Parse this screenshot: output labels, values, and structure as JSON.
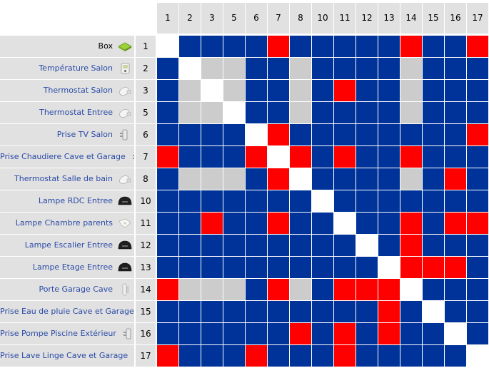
{
  "matrix": {
    "columns": [
      "1",
      "2",
      "3",
      "5",
      "6",
      "7",
      "8",
      "10",
      "11",
      "12",
      "13",
      "14",
      "15",
      "16",
      "17"
    ],
    "rows": [
      {
        "label": "Box",
        "num": "1",
        "icon": "box-icon"
      },
      {
        "label": "Température Salon",
        "num": "2",
        "icon": "thermometer-device-icon"
      },
      {
        "label": "Thermostat Salon",
        "num": "3",
        "icon": "thermostat-head-icon"
      },
      {
        "label": "Thermostat Entree",
        "num": "5",
        "icon": "thermostat-head-icon"
      },
      {
        "label": "Prise TV Salon",
        "num": "6",
        "icon": "plug-icon"
      },
      {
        "label": "Prise Chaudiere Cave et Garage",
        "num": "7",
        "icon": "plug-icon"
      },
      {
        "label": "Thermostat Salle de bain",
        "num": "8",
        "icon": "thermostat-head-icon"
      },
      {
        "label": "Lampe RDC Entree",
        "num": "10",
        "icon": "dimmer-module-icon"
      },
      {
        "label": "Lampe Chambre parents",
        "num": "11",
        "icon": "bulb-module-icon"
      },
      {
        "label": "Lampe Escalier Entree",
        "num": "12",
        "icon": "dimmer-module-icon"
      },
      {
        "label": "Lampe Etage Entree",
        "num": "13",
        "icon": "dimmer-module-icon"
      },
      {
        "label": "Porte Garage Cave",
        "num": "14",
        "icon": "door-sensor-icon"
      },
      {
        "label": "Prise Eau de pluie Cave et Garage",
        "num": "15",
        "icon": "plug-icon"
      },
      {
        "label": "Prise Pompe Piscine Extérieur",
        "num": "16",
        "icon": "plug-icon"
      },
      {
        "label": "Prise Lave Linge Cave et Garage",
        "num": "17",
        "icon": "plug-icon"
      }
    ],
    "cells": [
      "WBBBBRBBBBBRBBR",
      "BWGGBBGBBBBGBBB",
      "BGWGBBGBRBBGBBB",
      "BGGWBBGBBBBGBBB",
      "BBBBWRBBBBBBBBR",
      "RBBBRWRBRBBRBBB",
      "BGGGBRWBBBBGBRB",
      "BBBBBBBWBBBBBBB",
      "BBRBBRBBWBBRBRR",
      "BBBBBBBBBWBRBBB",
      "BBBBBBBBBBWRRRB",
      "RGGGBRGBRRRWBBB",
      "BBBBBBBBBBRBWBB",
      "BBBBBBRBRBRBBWB",
      "RBBBRBBBRBBBBBX"
    ],
    "colors": {
      "B": "#003399",
      "R": "#ff0000",
      "G": "#cccccc",
      "W": "#ffffff",
      "X": "#ffffff"
    }
  }
}
